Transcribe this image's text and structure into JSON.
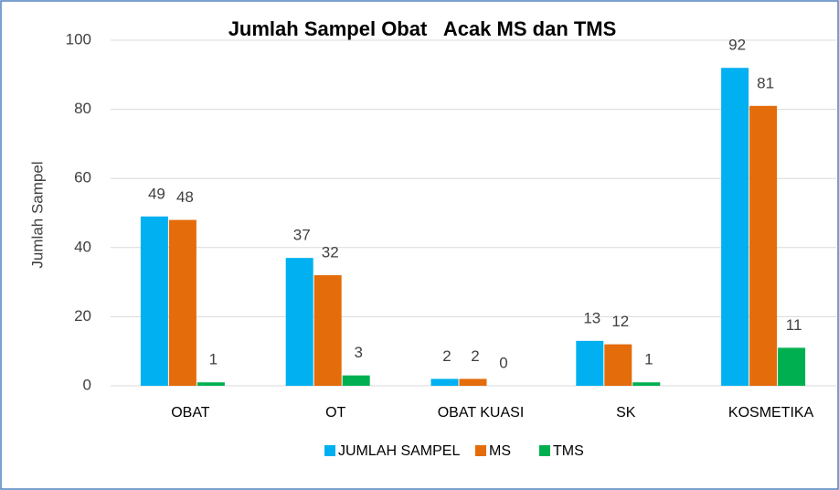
{
  "chart_data": {
    "type": "bar",
    "title": "Jumlah Sampel Obat   Acak MS dan TMS",
    "y_label": "Jumlah Sampel",
    "categories": [
      "OBAT",
      "OT",
      "OBAT KUASI",
      "SK",
      "KOSMETIKA"
    ],
    "series": [
      {
        "name": "JUMLAH SAMPEL",
        "color": "#00b0f0",
        "values": [
          49,
          37,
          2,
          13,
          92
        ]
      },
      {
        "name": "MS",
        "color": "#e46c0a",
        "values": [
          48,
          32,
          2,
          12,
          81
        ]
      },
      {
        "name": "TMS",
        "color": "#00b050",
        "values": [
          1,
          3,
          0,
          1,
          11
        ]
      }
    ],
    "ylim": [
      0,
      100
    ],
    "yticks": [
      0,
      20,
      40,
      60,
      80,
      100
    ],
    "grid": true,
    "legend": "bottom"
  }
}
